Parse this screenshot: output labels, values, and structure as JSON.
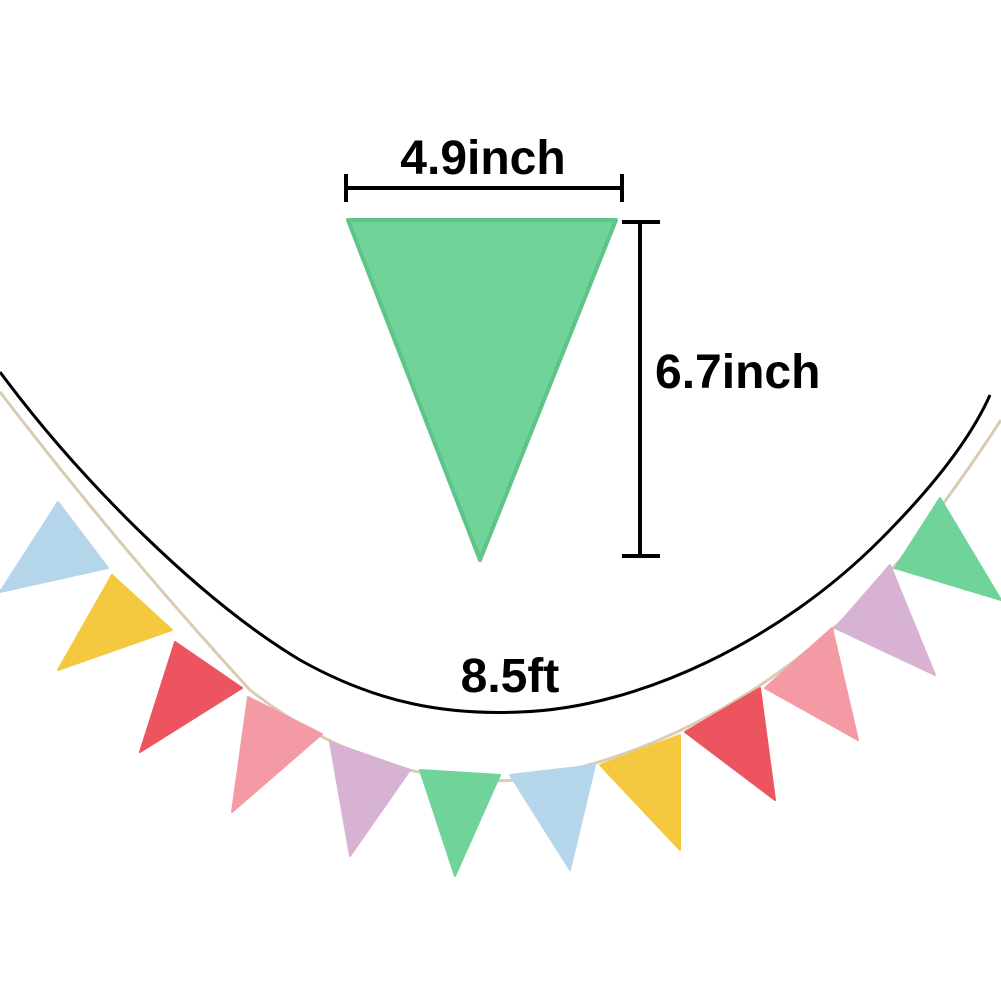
{
  "labels": {
    "flag_width": "4.9inch",
    "flag_height": "6.7inch",
    "banner_length": "8.5ft"
  },
  "colors": {
    "green": "#6fd39a",
    "blue": "#b5d6ea",
    "yellow": "#f5c93f",
    "red": "#ec5560",
    "pink": "#f39aa4",
    "lilac": "#d8b2d3",
    "string": "#d9ccb3",
    "line": "#000000"
  },
  "pennants": [
    {
      "name": "pennant-blue-left",
      "color": "blue"
    },
    {
      "name": "pennant-yellow-left",
      "color": "yellow"
    },
    {
      "name": "pennant-red-left",
      "color": "red"
    },
    {
      "name": "pennant-pink-left",
      "color": "pink"
    },
    {
      "name": "pennant-lilac-center",
      "color": "lilac"
    },
    {
      "name": "pennant-green-center",
      "color": "green"
    },
    {
      "name": "pennant-blue-center",
      "color": "blue"
    },
    {
      "name": "pennant-yellow-right",
      "color": "yellow"
    },
    {
      "name": "pennant-red-right",
      "color": "red"
    },
    {
      "name": "pennant-pink-right",
      "color": "pink"
    },
    {
      "name": "pennant-lilac-right",
      "color": "lilac"
    },
    {
      "name": "pennant-green-right",
      "color": "green"
    }
  ]
}
